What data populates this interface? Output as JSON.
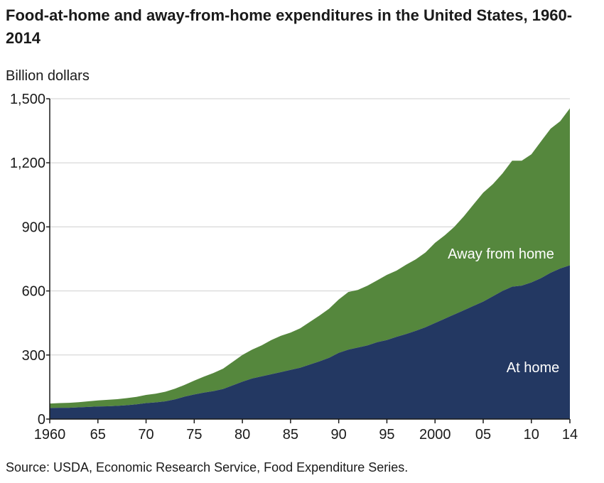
{
  "title": "Food-at-home and away-from-home expenditures in the United States, 1960-2014",
  "source": "Source: USDA, Economic Research Service, Food Expenditure Series.",
  "colors": {
    "at_home": "#233862",
    "away_from_home": "#55873d",
    "grid": "#cfcfcf",
    "axis": "#1a1a1a"
  },
  "chart_data": {
    "type": "area",
    "stacked": true,
    "ylabel": "Billion dollars",
    "xlabel": "",
    "xlim": [
      1960,
      2014
    ],
    "ylim": [
      0,
      1500
    ],
    "y_ticks": [
      0,
      300,
      600,
      900,
      1200,
      1500
    ],
    "y_tick_labels": [
      "0",
      "300",
      "600",
      "900",
      "1,200",
      "1,500"
    ],
    "x_ticks": [
      1960,
      1965,
      1970,
      1975,
      1980,
      1985,
      1990,
      1995,
      2000,
      2005,
      2010,
      2014
    ],
    "x_tick_labels": [
      "1960",
      "65",
      "70",
      "75",
      "80",
      "85",
      "90",
      "95",
      "2000",
      "05",
      "10",
      "14"
    ],
    "grid": true,
    "x": [
      1960,
      1961,
      1962,
      1963,
      1964,
      1965,
      1966,
      1967,
      1968,
      1969,
      1970,
      1971,
      1972,
      1973,
      1974,
      1975,
      1976,
      1977,
      1978,
      1979,
      1980,
      1981,
      1982,
      1983,
      1984,
      1985,
      1986,
      1987,
      1988,
      1989,
      1990,
      1991,
      1992,
      1993,
      1994,
      1995,
      1996,
      1997,
      1998,
      1999,
      2000,
      2001,
      2002,
      2003,
      2004,
      2005,
      2006,
      2007,
      2008,
      2009,
      2010,
      2011,
      2012,
      2013,
      2014
    ],
    "series": [
      {
        "name": "At home",
        "values": [
          52,
          53,
          53,
          55,
          57,
          59,
          60,
          62,
          65,
          69,
          75,
          78,
          83,
          92,
          105,
          115,
          124,
          131,
          141,
          158,
          175,
          190,
          200,
          210,
          220,
          230,
          240,
          255,
          270,
          287,
          310,
          325,
          335,
          345,
          360,
          370,
          385,
          398,
          413,
          430,
          450,
          470,
          490,
          510,
          530,
          550,
          575,
          600,
          620,
          625,
          640,
          660,
          685,
          705,
          720
        ]
      },
      {
        "name": "Away from home",
        "values": [
          21,
          22,
          23,
          24,
          26,
          28,
          30,
          31,
          33,
          35,
          38,
          41,
          45,
          50,
          55,
          65,
          75,
          85,
          95,
          110,
          125,
          135,
          145,
          160,
          170,
          175,
          185,
          200,
          215,
          230,
          250,
          270,
          270,
          280,
          290,
          305,
          310,
          325,
          335,
          350,
          375,
          390,
          410,
          440,
          475,
          510,
          525,
          550,
          590,
          585,
          600,
          640,
          675,
          690,
          735
        ]
      }
    ],
    "annotations": [
      {
        "text": "Away from home",
        "series": "Away from home"
      },
      {
        "text": "At home",
        "series": "At home"
      }
    ]
  }
}
